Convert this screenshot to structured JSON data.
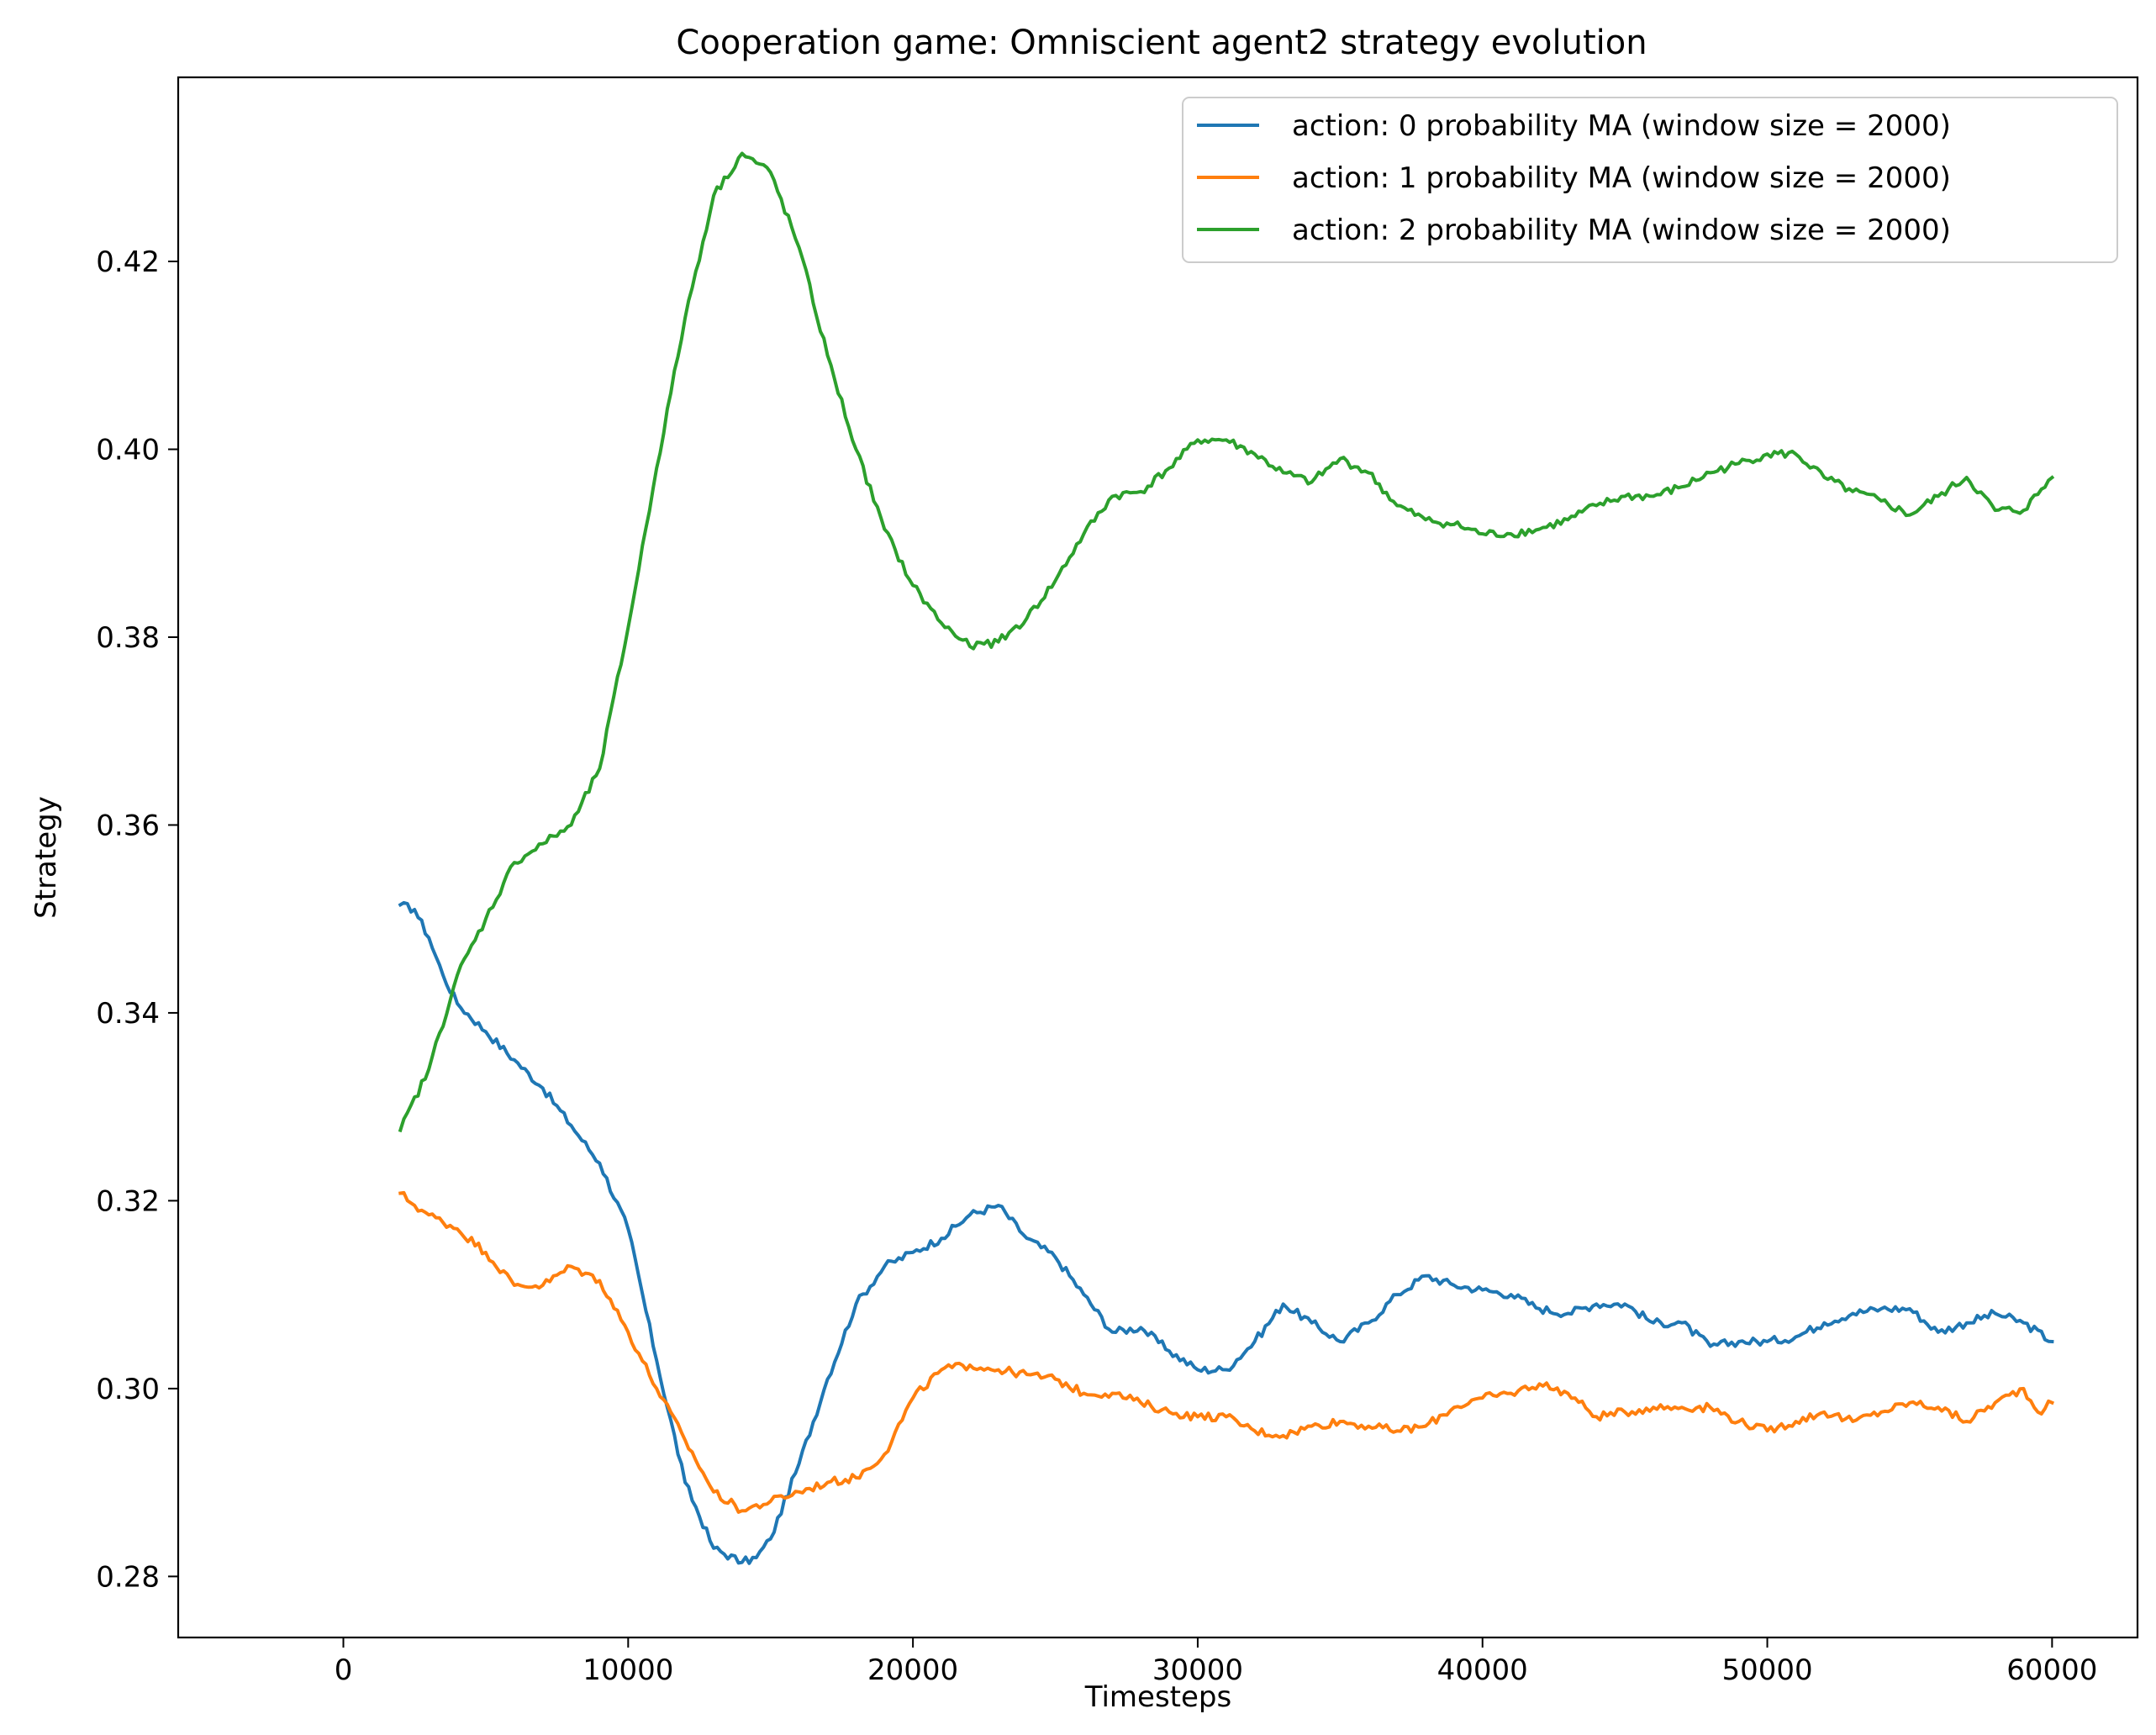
{
  "chart_data": {
    "type": "line",
    "title": "Cooperation game: Omniscient agent2 strategy evolution",
    "xlabel": "Timesteps",
    "ylabel": "Strategy",
    "xlim": [
      -5800,
      63000
    ],
    "ylim": [
      0.2735,
      0.4396
    ],
    "xticks": [
      0,
      10000,
      20000,
      30000,
      40000,
      50000,
      60000
    ],
    "xtick_labels": [
      "0",
      "10000",
      "20000",
      "30000",
      "40000",
      "50000",
      "60000"
    ],
    "yticks": [
      0.28,
      0.3,
      0.32,
      0.34,
      0.36,
      0.38,
      0.4,
      0.42
    ],
    "ytick_labels": [
      "0.28",
      "0.30",
      "0.32",
      "0.34",
      "0.36",
      "0.38",
      "0.40",
      "0.42"
    ],
    "grid": false,
    "legend_position": "upper right",
    "series": [
      {
        "name": "action: 0 probability MA (window size = 2000)",
        "color": "#1f77b4",
        "points": [
          [
            2000,
            0.3515
          ],
          [
            2500,
            0.351
          ],
          [
            3000,
            0.348
          ],
          [
            3500,
            0.344
          ],
          [
            4000,
            0.341
          ],
          [
            5000,
            0.338
          ],
          [
            6000,
            0.335
          ],
          [
            7000,
            0.332
          ],
          [
            8000,
            0.328
          ],
          [
            9000,
            0.324
          ],
          [
            10000,
            0.317
          ],
          [
            11000,
            0.303
          ],
          [
            12000,
            0.29
          ],
          [
            13000,
            0.283
          ],
          [
            14000,
            0.2815
          ],
          [
            14500,
            0.282
          ],
          [
            15000,
            0.284
          ],
          [
            16000,
            0.292
          ],
          [
            17000,
            0.301
          ],
          [
            18000,
            0.309
          ],
          [
            19000,
            0.313
          ],
          [
            20000,
            0.3145
          ],
          [
            21000,
            0.316
          ],
          [
            22000,
            0.3185
          ],
          [
            23000,
            0.3195
          ],
          [
            24000,
            0.316
          ],
          [
            25000,
            0.314
          ],
          [
            26000,
            0.31
          ],
          [
            27000,
            0.306
          ],
          [
            28000,
            0.3065
          ],
          [
            29000,
            0.304
          ],
          [
            30000,
            0.302
          ],
          [
            31000,
            0.302
          ],
          [
            32000,
            0.305
          ],
          [
            33000,
            0.309
          ],
          [
            34000,
            0.307
          ],
          [
            35000,
            0.305
          ],
          [
            36000,
            0.307
          ],
          [
            37000,
            0.31
          ],
          [
            38000,
            0.312
          ],
          [
            39000,
            0.311
          ],
          [
            40000,
            0.3105
          ],
          [
            41000,
            0.31
          ],
          [
            42000,
            0.3085
          ],
          [
            43000,
            0.308
          ],
          [
            44000,
            0.309
          ],
          [
            45000,
            0.309
          ],
          [
            46000,
            0.307
          ],
          [
            47000,
            0.307
          ],
          [
            48000,
            0.3045
          ],
          [
            49000,
            0.305
          ],
          [
            50000,
            0.305
          ],
          [
            51000,
            0.3055
          ],
          [
            52000,
            0.307
          ],
          [
            53000,
            0.308
          ],
          [
            54000,
            0.3085
          ],
          [
            55000,
            0.3085
          ],
          [
            56000,
            0.306
          ],
          [
            57000,
            0.307
          ],
          [
            58000,
            0.308
          ],
          [
            59000,
            0.307
          ],
          [
            60000,
            0.305
          ]
        ]
      },
      {
        "name": "action: 1 probability MA (window size = 2000)",
        "color": "#ff7f0e",
        "points": [
          [
            2000,
            0.3208
          ],
          [
            2500,
            0.3195
          ],
          [
            3000,
            0.3185
          ],
          [
            4000,
            0.317
          ],
          [
            5000,
            0.3145
          ],
          [
            6000,
            0.311
          ],
          [
            7000,
            0.311
          ],
          [
            8000,
            0.313
          ],
          [
            9000,
            0.3115
          ],
          [
            10000,
            0.306
          ],
          [
            11000,
            0.3
          ],
          [
            12000,
            0.2945
          ],
          [
            13000,
            0.289
          ],
          [
            14000,
            0.287
          ],
          [
            15000,
            0.288
          ],
          [
            16000,
            0.289
          ],
          [
            17000,
            0.29
          ],
          [
            18000,
            0.2905
          ],
          [
            19000,
            0.293
          ],
          [
            20000,
            0.299
          ],
          [
            21000,
            0.302
          ],
          [
            22000,
            0.3025
          ],
          [
            23000,
            0.302
          ],
          [
            24000,
            0.3015
          ],
          [
            25000,
            0.301
          ],
          [
            26000,
            0.2995
          ],
          [
            27000,
            0.2995
          ],
          [
            28000,
            0.2985
          ],
          [
            29000,
            0.2975
          ],
          [
            30000,
            0.297
          ],
          [
            31000,
            0.297
          ],
          [
            32000,
            0.2955
          ],
          [
            33000,
            0.295
          ],
          [
            34000,
            0.296
          ],
          [
            35000,
            0.2965
          ],
          [
            36000,
            0.296
          ],
          [
            37000,
            0.2955
          ],
          [
            38000,
            0.296
          ],
          [
            39000,
            0.298
          ],
          [
            40000,
            0.299
          ],
          [
            41000,
            0.2995
          ],
          [
            42000,
            0.3005
          ],
          [
            43000,
            0.2995
          ],
          [
            44000,
            0.297
          ],
          [
            45000,
            0.2975
          ],
          [
            46000,
            0.298
          ],
          [
            47000,
            0.298
          ],
          [
            48000,
            0.298
          ],
          [
            49000,
            0.2965
          ],
          [
            50000,
            0.2955
          ],
          [
            51000,
            0.2965
          ],
          [
            52000,
            0.2975
          ],
          [
            53000,
            0.2965
          ],
          [
            54000,
            0.2975
          ],
          [
            55000,
            0.2985
          ],
          [
            56000,
            0.298
          ],
          [
            57000,
            0.2965
          ],
          [
            58000,
            0.2985
          ],
          [
            59000,
            0.3
          ],
          [
            59500,
            0.2975
          ],
          [
            60000,
            0.2985
          ]
        ]
      },
      {
        "name": "action: 2 probability MA (window size = 2000)",
        "color": "#2ca02c",
        "points": [
          [
            2000,
            0.3275
          ],
          [
            3000,
            0.334
          ],
          [
            4000,
            0.344
          ],
          [
            5000,
            0.35
          ],
          [
            6000,
            0.356
          ],
          [
            7000,
            0.358
          ],
          [
            8000,
            0.36
          ],
          [
            9000,
            0.366
          ],
          [
            10000,
            0.381
          ],
          [
            11000,
            0.398
          ],
          [
            12000,
            0.414
          ],
          [
            13000,
            0.427
          ],
          [
            14000,
            0.4315
          ],
          [
            15000,
            0.4295
          ],
          [
            16000,
            0.4215
          ],
          [
            17000,
            0.41
          ],
          [
            18000,
            0.4
          ],
          [
            19000,
            0.3915
          ],
          [
            20000,
            0.3855
          ],
          [
            21000,
            0.3815
          ],
          [
            22000,
            0.379
          ],
          [
            23000,
            0.3795
          ],
          [
            24000,
            0.382
          ],
          [
            25000,
            0.386
          ],
          [
            26000,
            0.391
          ],
          [
            27000,
            0.395
          ],
          [
            28000,
            0.3955
          ],
          [
            29000,
            0.398
          ],
          [
            30000,
            0.401
          ],
          [
            31000,
            0.401
          ],
          [
            32000,
            0.3995
          ],
          [
            33000,
            0.3975
          ],
          [
            34000,
            0.3965
          ],
          [
            35000,
            0.399
          ],
          [
            36000,
            0.3975
          ],
          [
            37000,
            0.394
          ],
          [
            38000,
            0.3925
          ],
          [
            39000,
            0.392
          ],
          [
            40000,
            0.391
          ],
          [
            41000,
            0.391
          ],
          [
            42000,
            0.3915
          ],
          [
            43000,
            0.3925
          ],
          [
            44000,
            0.394
          ],
          [
            45000,
            0.395
          ],
          [
            46000,
            0.395
          ],
          [
            47000,
            0.396
          ],
          [
            48000,
            0.3975
          ],
          [
            49000,
            0.3985
          ],
          [
            50000,
            0.3995
          ],
          [
            51000,
            0.3995
          ],
          [
            52000,
            0.397
          ],
          [
            53000,
            0.3955
          ],
          [
            54000,
            0.3945
          ],
          [
            55000,
            0.393
          ],
          [
            56000,
            0.395
          ],
          [
            57000,
            0.397
          ],
          [
            58000,
            0.3935
          ],
          [
            59000,
            0.3935
          ],
          [
            60000,
            0.397
          ]
        ]
      }
    ]
  }
}
